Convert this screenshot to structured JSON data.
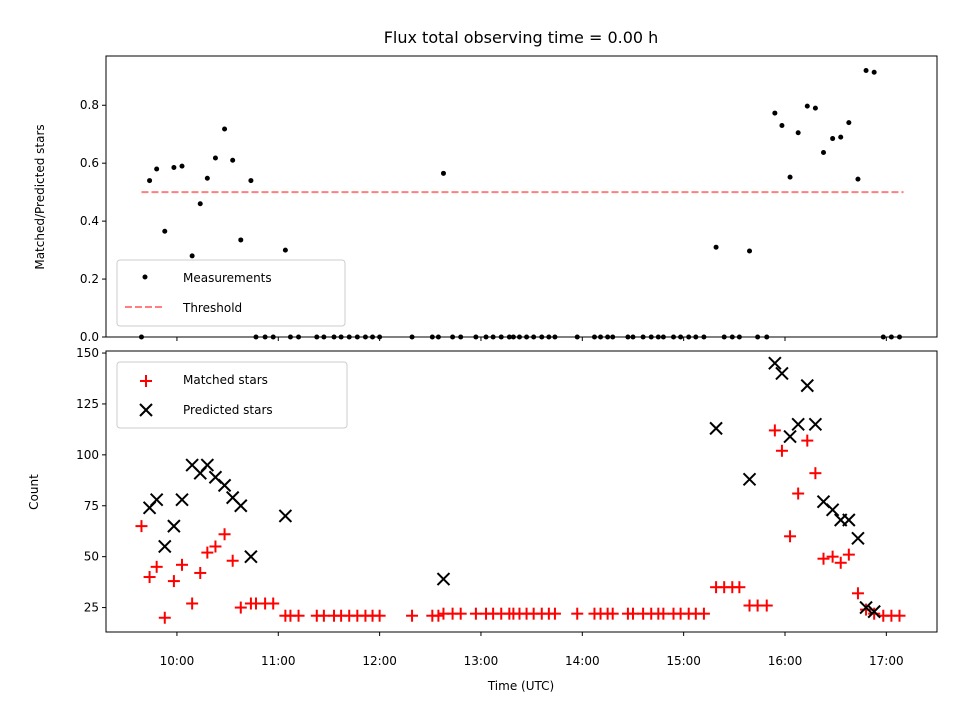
{
  "chart_data": [
    {
      "type": "scatter",
      "title": "Flux total observing time = 0.00 h",
      "ylabel": "Matched/Predicted stars",
      "xlabel": "",
      "xlim": [
        9.3,
        17.5
      ],
      "ylim": [
        0,
        0.97
      ],
      "yticks": [
        0.0,
        0.2,
        0.4,
        0.6,
        0.8
      ],
      "ytick_labels": [
        "0.0",
        "0.2",
        "0.4",
        "0.6",
        "0.8"
      ],
      "xticks": [
        10,
        11,
        12,
        13,
        14,
        15,
        16,
        17
      ],
      "legend_position": "lower-left",
      "series": [
        {
          "name": "Measurements",
          "marker": "dot",
          "color": "#000000",
          "points": [
            [
              9.65,
              0.0
            ],
            [
              9.73,
              0.54
            ],
            [
              9.8,
              0.58
            ],
            [
              9.88,
              0.365
            ],
            [
              9.97,
              0.585
            ],
            [
              10.05,
              0.59
            ],
            [
              10.15,
              0.28
            ],
            [
              10.23,
              0.46
            ],
            [
              10.3,
              0.548
            ],
            [
              10.38,
              0.618
            ],
            [
              10.47,
              0.718
            ],
            [
              10.55,
              0.61
            ],
            [
              10.63,
              0.335
            ],
            [
              10.73,
              0.54
            ],
            [
              10.78,
              0.0
            ],
            [
              10.87,
              0.0
            ],
            [
              10.95,
              0.0
            ],
            [
              11.07,
              0.3
            ],
            [
              11.12,
              0.0
            ],
            [
              11.2,
              0.0
            ],
            [
              11.38,
              0.0
            ],
            [
              11.45,
              0.0
            ],
            [
              11.55,
              0.0
            ],
            [
              11.62,
              0.0
            ],
            [
              11.7,
              0.0
            ],
            [
              11.78,
              0.0
            ],
            [
              11.86,
              0.0
            ],
            [
              11.93,
              0.0
            ],
            [
              12.0,
              0.0
            ],
            [
              12.32,
              0.0
            ],
            [
              12.52,
              0.0
            ],
            [
              12.58,
              0.0
            ],
            [
              12.63,
              0.565
            ],
            [
              12.72,
              0.0
            ],
            [
              12.8,
              0.0
            ],
            [
              12.95,
              0.0
            ],
            [
              13.05,
              0.0
            ],
            [
              13.12,
              0.0
            ],
            [
              13.2,
              0.0
            ],
            [
              13.28,
              0.0
            ],
            [
              13.32,
              0.0
            ],
            [
              13.38,
              0.0
            ],
            [
              13.45,
              0.0
            ],
            [
              13.52,
              0.0
            ],
            [
              13.6,
              0.0
            ],
            [
              13.67,
              0.0
            ],
            [
              13.73,
              0.0
            ],
            [
              13.95,
              0.0
            ],
            [
              14.12,
              0.0
            ],
            [
              14.18,
              0.0
            ],
            [
              14.25,
              0.0
            ],
            [
              14.3,
              0.0
            ],
            [
              14.45,
              0.0
            ],
            [
              14.5,
              0.0
            ],
            [
              14.6,
              0.0
            ],
            [
              14.68,
              0.0
            ],
            [
              14.75,
              0.0
            ],
            [
              14.8,
              0.0
            ],
            [
              14.9,
              0.0
            ],
            [
              14.97,
              0.0
            ],
            [
              15.05,
              0.0
            ],
            [
              15.12,
              0.0
            ],
            [
              15.2,
              0.0
            ],
            [
              15.32,
              0.31
            ],
            [
              15.4,
              0.0
            ],
            [
              15.48,
              0.0
            ],
            [
              15.55,
              0.0
            ],
            [
              15.65,
              0.297
            ],
            [
              15.73,
              0.0
            ],
            [
              15.82,
              0.0
            ],
            [
              15.9,
              0.773
            ],
            [
              15.97,
              0.73
            ],
            [
              16.05,
              0.552
            ],
            [
              16.13,
              0.705
            ],
            [
              16.22,
              0.797
            ],
            [
              16.3,
              0.79
            ],
            [
              16.38,
              0.637
            ],
            [
              16.47,
              0.685
            ],
            [
              16.55,
              0.69
            ],
            [
              16.63,
              0.74
            ],
            [
              16.72,
              0.545
            ],
            [
              16.8,
              0.92
            ],
            [
              16.88,
              0.914
            ],
            [
              16.97,
              0.0
            ],
            [
              17.05,
              0.0
            ],
            [
              17.13,
              0.0
            ]
          ]
        },
        {
          "name": "Threshold",
          "style": "dashed-line",
          "color": "#ff7f7f",
          "x": [
            9.65,
            17.17
          ],
          "y": [
            0.5,
            0.5
          ]
        }
      ]
    },
    {
      "type": "scatter",
      "title": "",
      "ylabel": "Count",
      "xlabel": "Time (UTC)",
      "xlim": [
        9.3,
        17.5
      ],
      "ylim": [
        13,
        151
      ],
      "yticks": [
        25,
        50,
        75,
        100,
        125,
        150
      ],
      "ytick_labels": [
        "25",
        "50",
        "75",
        "100",
        "125",
        "150"
      ],
      "xticks": [
        10,
        11,
        12,
        13,
        14,
        15,
        16,
        17
      ],
      "xtick_labels": [
        "10:00",
        "11:00",
        "12:00",
        "13:00",
        "14:00",
        "15:00",
        "16:00",
        "17:00"
      ],
      "legend_position": "upper-left",
      "series": [
        {
          "name": "Matched stars",
          "marker": "plus",
          "color": "#ff0000",
          "points": [
            [
              9.65,
              65
            ],
            [
              9.73,
              40
            ],
            [
              9.8,
              45
            ],
            [
              9.88,
              20
            ],
            [
              9.97,
              38
            ],
            [
              10.05,
              46
            ],
            [
              10.15,
              27
            ],
            [
              10.23,
              42
            ],
            [
              10.3,
              52
            ],
            [
              10.38,
              55
            ],
            [
              10.47,
              61
            ],
            [
              10.55,
              48
            ],
            [
              10.63,
              25
            ],
            [
              10.73,
              27
            ],
            [
              10.78,
              27
            ],
            [
              10.87,
              27
            ],
            [
              10.95,
              27
            ],
            [
              11.07,
              21
            ],
            [
              11.12,
              21
            ],
            [
              11.2,
              21
            ],
            [
              11.38,
              21
            ],
            [
              11.45,
              21
            ],
            [
              11.55,
              21
            ],
            [
              11.62,
              21
            ],
            [
              11.7,
              21
            ],
            [
              11.78,
              21
            ],
            [
              11.86,
              21
            ],
            [
              11.93,
              21
            ],
            [
              12.0,
              21
            ],
            [
              12.32,
              21
            ],
            [
              12.52,
              21
            ],
            [
              12.58,
              21
            ],
            [
              12.63,
              22
            ],
            [
              12.72,
              22
            ],
            [
              12.8,
              22
            ],
            [
              12.95,
              22
            ],
            [
              13.05,
              22
            ],
            [
              13.12,
              22
            ],
            [
              13.2,
              22
            ],
            [
              13.28,
              22
            ],
            [
              13.32,
              22
            ],
            [
              13.38,
              22
            ],
            [
              13.45,
              22
            ],
            [
              13.52,
              22
            ],
            [
              13.6,
              22
            ],
            [
              13.67,
              22
            ],
            [
              13.73,
              22
            ],
            [
              13.95,
              22
            ],
            [
              14.12,
              22
            ],
            [
              14.18,
              22
            ],
            [
              14.25,
              22
            ],
            [
              14.3,
              22
            ],
            [
              14.45,
              22
            ],
            [
              14.5,
              22
            ],
            [
              14.6,
              22
            ],
            [
              14.68,
              22
            ],
            [
              14.75,
              22
            ],
            [
              14.8,
              22
            ],
            [
              14.9,
              22
            ],
            [
              14.97,
              22
            ],
            [
              15.05,
              22
            ],
            [
              15.12,
              22
            ],
            [
              15.2,
              22
            ],
            [
              15.32,
              35
            ],
            [
              15.4,
              35
            ],
            [
              15.48,
              35
            ],
            [
              15.55,
              35
            ],
            [
              15.65,
              26
            ],
            [
              15.73,
              26
            ],
            [
              15.82,
              26
            ],
            [
              15.9,
              112
            ],
            [
              15.97,
              102
            ],
            [
              16.05,
              60
            ],
            [
              16.13,
              81
            ],
            [
              16.22,
              107
            ],
            [
              16.3,
              91
            ],
            [
              16.38,
              49
            ],
            [
              16.47,
              50
            ],
            [
              16.55,
              47
            ],
            [
              16.63,
              51
            ],
            [
              16.72,
              32
            ],
            [
              16.8,
              24
            ],
            [
              16.88,
              22
            ],
            [
              16.97,
              21
            ],
            [
              17.05,
              21
            ],
            [
              17.13,
              21
            ]
          ]
        },
        {
          "name": "Predicted stars",
          "marker": "x",
          "color": "#000000",
          "points": [
            [
              9.73,
              74
            ],
            [
              9.8,
              78
            ],
            [
              9.88,
              55
            ],
            [
              9.97,
              65
            ],
            [
              10.05,
              78
            ],
            [
              10.15,
              95
            ],
            [
              10.23,
              91
            ],
            [
              10.3,
              95
            ],
            [
              10.38,
              89
            ],
            [
              10.47,
              85
            ],
            [
              10.55,
              79
            ],
            [
              10.63,
              75
            ],
            [
              10.73,
              50
            ],
            [
              11.07,
              70
            ],
            [
              12.63,
              39
            ],
            [
              15.32,
              113
            ],
            [
              15.65,
              88
            ],
            [
              15.9,
              145
            ],
            [
              15.97,
              140
            ],
            [
              16.05,
              109
            ],
            [
              16.13,
              115
            ],
            [
              16.22,
              134
            ],
            [
              16.3,
              115
            ],
            [
              16.38,
              77
            ],
            [
              16.47,
              73
            ],
            [
              16.55,
              68
            ],
            [
              16.63,
              68
            ],
            [
              16.72,
              59
            ],
            [
              16.8,
              25
            ],
            [
              16.88,
              23
            ]
          ]
        }
      ]
    }
  ]
}
